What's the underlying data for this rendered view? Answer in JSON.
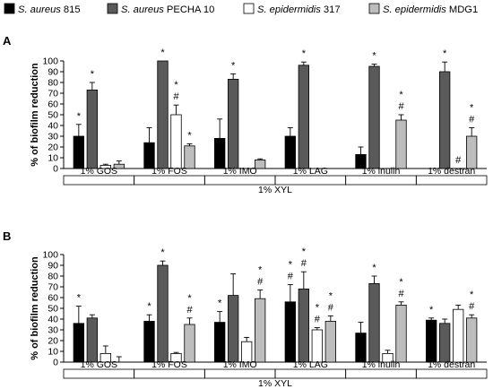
{
  "legend": {
    "items": [
      {
        "species": "S. aureus",
        "strain": "815",
        "color": "#000000"
      },
      {
        "species": "S. aureus",
        "strain": "PECHA 10",
        "color": "#5a5a5a"
      },
      {
        "species": "S. epidermidis",
        "strain": "317",
        "color": "#ffffff"
      },
      {
        "species": "S. epidermidis",
        "strain": "MDG1",
        "color": "#bdbdbd"
      }
    ]
  },
  "chart_data": [
    {
      "type": "bar",
      "panel_label": "A",
      "ylabel": "% of biofilm reduction",
      "xlabel": "1% XYL",
      "ylim": [
        0,
        100
      ],
      "yticks": [
        0,
        10,
        20,
        30,
        40,
        50,
        60,
        70,
        80,
        90,
        100
      ],
      "categories": [
        "1% GOS",
        "1% FOS",
        "1% IMO",
        "1% LAG",
        "1% inulin",
        "1% destran"
      ],
      "series": [
        {
          "name": "S. aureus 815",
          "values": [
            30,
            24,
            28,
            30,
            13,
            0
          ],
          "errors": [
            11,
            14,
            18,
            8,
            7,
            0
          ],
          "marks": [
            "*",
            "",
            "",
            "",
            "",
            ""
          ]
        },
        {
          "name": "S. aureus PECHA 10",
          "values": [
            73,
            100,
            83,
            96,
            95,
            90
          ],
          "errors": [
            7,
            0,
            5,
            3,
            2,
            9
          ],
          "marks": [
            "*",
            "*",
            "*",
            "*",
            "*",
            "*"
          ]
        },
        {
          "name": "S. epidermidis 317",
          "values": [
            3,
            50,
            0,
            0,
            0,
            0
          ],
          "errors": [
            1,
            9,
            0,
            0,
            0,
            0
          ],
          "marks": [
            "",
            "* #",
            "",
            "",
            "",
            "#"
          ]
        },
        {
          "name": "S. epidermidis MDG1",
          "values": [
            4,
            21,
            8,
            0,
            45,
            30
          ],
          "errors": [
            3,
            2,
            1,
            0,
            5,
            8
          ],
          "marks": [
            "",
            "*",
            "",
            "",
            "* #",
            "* #"
          ]
        }
      ]
    },
    {
      "type": "bar",
      "panel_label": "B",
      "ylabel": "% of biofilm reduction",
      "xlabel": "1% XYL",
      "ylim": [
        0,
        100
      ],
      "yticks": [
        0,
        10,
        20,
        30,
        40,
        50,
        60,
        70,
        80,
        90,
        100
      ],
      "categories": [
        "1% GOS",
        "1% FOS",
        "1% IMO",
        "1% LAG",
        "1% inulin",
        "1% destran"
      ],
      "series": [
        {
          "name": "S. aureus 815",
          "values": [
            36,
            38,
            37,
            56,
            27,
            39
          ],
          "errors": [
            16,
            6,
            10,
            16,
            10,
            2
          ],
          "marks": [
            "*",
            "*",
            "*",
            "* #",
            "",
            "*"
          ]
        },
        {
          "name": "S. aureus PECHA 10",
          "values": [
            41,
            90,
            62,
            68,
            73,
            36
          ],
          "errors": [
            3,
            4,
            20,
            16,
            7,
            4
          ],
          "marks": [
            "",
            "*",
            "",
            "* #",
            "*",
            ""
          ]
        },
        {
          "name": "S. epidermidis 317",
          "values": [
            8,
            8,
            19,
            30,
            8,
            49
          ],
          "errors": [
            7,
            1,
            4,
            2,
            3,
            4
          ],
          "marks": [
            "",
            "",
            "",
            "* #",
            "",
            ""
          ]
        },
        {
          "name": "S. epidermidis MDG1",
          "values": [
            0,
            35,
            59,
            38,
            53,
            41
          ],
          "errors": [
            5,
            6,
            8,
            5,
            3,
            3
          ],
          "marks": [
            "",
            "* #",
            "* #",
            "* #",
            "* #",
            "* #"
          ]
        }
      ]
    }
  ]
}
